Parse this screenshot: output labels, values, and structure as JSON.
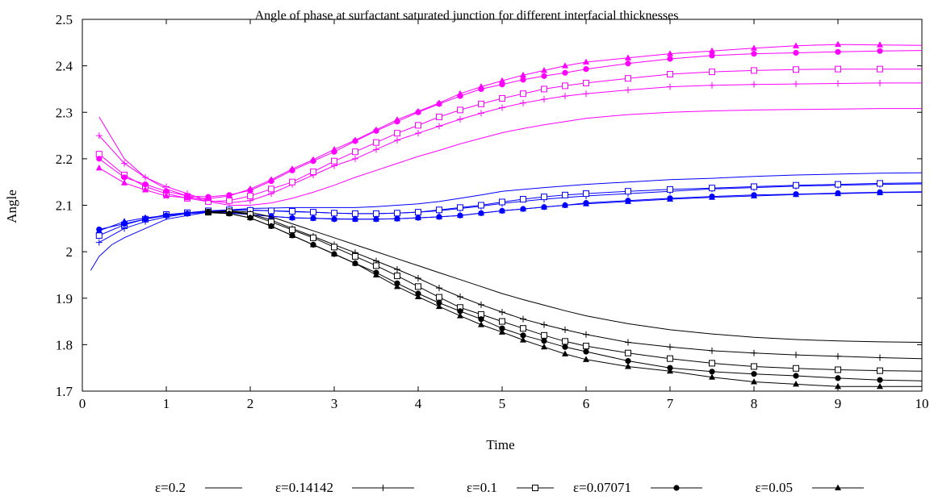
{
  "chart_data": {
    "type": "line",
    "title": "Angle of phase at surfactant saturated junction for different interfacial thicknesses",
    "xlabel": "Time",
    "ylabel": "Angle",
    "xlim": [
      0,
      10
    ],
    "ylim": [
      1.7,
      2.5
    ],
    "xticks": [
      0,
      1,
      2,
      3,
      4,
      5,
      6,
      7,
      8,
      9,
      10
    ],
    "xtick_labels": [
      "0",
      "1",
      "2",
      "3",
      "4",
      "5",
      "6",
      "7",
      "8",
      "9",
      "10"
    ],
    "yticks": [
      1.7,
      1.8,
      1.9,
      2.0,
      2.1,
      2.2,
      2.3,
      2.4,
      2.5
    ],
    "ytick_labels": [
      "1.7",
      "1.8",
      "1.9",
      "2",
      "2.1",
      "2.2",
      "2.3",
      "2.4",
      "2.5"
    ],
    "grid": false,
    "legend_position": "bottom",
    "line_colors": {
      "magenta": "#ff00ff",
      "blue": "#0000ff",
      "black": "#000000"
    },
    "legend": [
      {
        "label": "ε=0.2",
        "marker": "none"
      },
      {
        "label": "ε=0.14142",
        "marker": "plus"
      },
      {
        "label": "ε=0.1",
        "marker": "open-square"
      },
      {
        "label": "ε=0.07071",
        "marker": "filled-circle"
      },
      {
        "label": "ε=0.05",
        "marker": "filled-triangle"
      }
    ],
    "series": [
      {
        "name": "ε=0.2",
        "group": "magenta",
        "marker": "none",
        "x": [
          0.2,
          0.5,
          0.75,
          1.0,
          1.25,
          1.5,
          1.75,
          2.0,
          2.25,
          2.5,
          2.75,
          3.0,
          3.25,
          3.5,
          3.75,
          4.0,
          4.25,
          4.5,
          4.75,
          5.0,
          5.25,
          5.5,
          5.75,
          6.0,
          6.5,
          7.0,
          7.5,
          8.0,
          8.5,
          9.0,
          9.5,
          10.0
        ],
        "y": [
          2.29,
          2.2,
          2.16,
          2.135,
          2.12,
          2.108,
          2.1,
          2.1,
          2.105,
          2.115,
          2.128,
          2.143,
          2.16,
          2.175,
          2.19,
          2.205,
          2.218,
          2.232,
          2.244,
          2.256,
          2.265,
          2.273,
          2.28,
          2.287,
          2.295,
          2.3,
          2.303,
          2.305,
          2.306,
          2.307,
          2.308,
          2.308
        ]
      },
      {
        "name": "ε=0.14142",
        "group": "magenta",
        "marker": "plus",
        "x": [
          0.2,
          0.5,
          0.75,
          1.0,
          1.25,
          1.5,
          1.75,
          2.0,
          2.25,
          2.5,
          2.75,
          3.0,
          3.25,
          3.5,
          3.75,
          4.0,
          4.25,
          4.5,
          4.75,
          5.0,
          5.25,
          5.5,
          5.75,
          6.0,
          6.5,
          7.0,
          7.5,
          8.0,
          8.5,
          9.0,
          9.5,
          10.0
        ],
        "y": [
          2.25,
          2.19,
          2.16,
          2.14,
          2.125,
          2.11,
          2.105,
          2.11,
          2.125,
          2.145,
          2.165,
          2.185,
          2.2,
          2.22,
          2.24,
          2.255,
          2.27,
          2.285,
          2.298,
          2.31,
          2.32,
          2.328,
          2.335,
          2.34,
          2.348,
          2.355,
          2.358,
          2.36,
          2.361,
          2.362,
          2.363,
          2.363
        ]
      },
      {
        "name": "ε=0.1",
        "group": "magenta",
        "marker": "open-square",
        "x": [
          0.2,
          0.5,
          0.75,
          1.0,
          1.25,
          1.5,
          1.75,
          2.0,
          2.25,
          2.5,
          2.75,
          3.0,
          3.25,
          3.5,
          3.75,
          4.0,
          4.25,
          4.5,
          4.75,
          5.0,
          5.25,
          5.5,
          5.75,
          6.0,
          6.5,
          7.0,
          7.5,
          8.0,
          8.5,
          9.0,
          9.5,
          10.0
        ],
        "y": [
          2.21,
          2.165,
          2.14,
          2.125,
          2.115,
          2.108,
          2.11,
          2.12,
          2.135,
          2.15,
          2.172,
          2.195,
          2.215,
          2.235,
          2.255,
          2.272,
          2.29,
          2.305,
          2.318,
          2.33,
          2.34,
          2.35,
          2.357,
          2.363,
          2.373,
          2.382,
          2.387,
          2.39,
          2.392,
          2.393,
          2.393,
          2.393
        ]
      },
      {
        "name": "ε=0.07071",
        "group": "magenta",
        "marker": "filled-circle",
        "x": [
          0.2,
          0.5,
          0.75,
          1.0,
          1.25,
          1.5,
          1.75,
          2.0,
          2.25,
          2.5,
          2.75,
          3.0,
          3.25,
          3.5,
          3.75,
          4.0,
          4.25,
          4.5,
          4.75,
          5.0,
          5.25,
          5.5,
          5.75,
          6.0,
          6.5,
          7.0,
          7.5,
          8.0,
          8.5,
          9.0,
          9.5,
          10.0
        ],
        "y": [
          2.2,
          2.16,
          2.145,
          2.13,
          2.12,
          2.118,
          2.122,
          2.132,
          2.152,
          2.175,
          2.195,
          2.215,
          2.238,
          2.26,
          2.28,
          2.3,
          2.318,
          2.335,
          2.35,
          2.36,
          2.37,
          2.378,
          2.385,
          2.393,
          2.405,
          2.415,
          2.422,
          2.426,
          2.428,
          2.43,
          2.432,
          2.433
        ]
      },
      {
        "name": "ε=0.05",
        "group": "magenta",
        "marker": "filled-triangle",
        "x": [
          0.2,
          0.5,
          0.75,
          1.0,
          1.25,
          1.5,
          1.75,
          2.0,
          2.25,
          2.5,
          2.75,
          3.0,
          3.25,
          3.5,
          3.75,
          4.0,
          4.25,
          4.5,
          4.75,
          5.0,
          5.25,
          5.5,
          5.75,
          6.0,
          6.5,
          7.0,
          7.5,
          8.0,
          8.5,
          9.0,
          9.5,
          10.0
        ],
        "y": [
          2.18,
          2.148,
          2.133,
          2.12,
          2.116,
          2.114,
          2.12,
          2.135,
          2.155,
          2.178,
          2.198,
          2.22,
          2.24,
          2.262,
          2.284,
          2.302,
          2.32,
          2.34,
          2.355,
          2.368,
          2.38,
          2.39,
          2.4,
          2.408,
          2.417,
          2.426,
          2.432,
          2.438,
          2.443,
          2.446,
          2.445,
          2.444
        ]
      },
      {
        "name": "ε=0.2",
        "group": "blue",
        "marker": "none",
        "x": [
          0.1,
          0.2,
          0.35,
          0.5,
          0.75,
          1.0,
          1.25,
          1.5,
          1.75,
          2.0,
          2.25,
          2.5,
          2.75,
          3.0,
          3.25,
          3.5,
          3.75,
          4.0,
          4.25,
          4.5,
          4.75,
          5.0,
          5.5,
          6.0,
          6.5,
          7.0,
          7.5,
          8.0,
          8.5,
          9.0,
          9.5,
          10.0
        ],
        "y": [
          1.96,
          1.99,
          2.015,
          2.03,
          2.05,
          2.07,
          2.078,
          2.085,
          2.09,
          2.093,
          2.094,
          2.095,
          2.095,
          2.095,
          2.095,
          2.097,
          2.1,
          2.103,
          2.108,
          2.115,
          2.122,
          2.13,
          2.138,
          2.145,
          2.15,
          2.155,
          2.158,
          2.162,
          2.165,
          2.167,
          2.169,
          2.17
        ]
      },
      {
        "name": "ε=0.14142",
        "group": "blue",
        "marker": "plus",
        "x": [
          0.2,
          0.5,
          0.75,
          1.0,
          1.25,
          1.5,
          1.75,
          2.0,
          2.25,
          2.5,
          2.75,
          3.0,
          3.25,
          3.5,
          3.75,
          4.0,
          4.25,
          4.5,
          4.75,
          5.0,
          5.5,
          6.0,
          6.5,
          7.0,
          7.5,
          8.0,
          8.5,
          9.0,
          9.5,
          10.0
        ],
        "y": [
          2.02,
          2.05,
          2.065,
          2.075,
          2.082,
          2.087,
          2.09,
          2.09,
          2.088,
          2.086,
          2.085,
          2.083,
          2.082,
          2.082,
          2.083,
          2.085,
          2.088,
          2.093,
          2.098,
          2.104,
          2.113,
          2.12,
          2.125,
          2.13,
          2.135,
          2.138,
          2.141,
          2.143,
          2.145,
          2.146
        ]
      },
      {
        "name": "ε=0.1",
        "group": "blue",
        "marker": "open-square",
        "x": [
          0.2,
          0.5,
          0.75,
          1.0,
          1.25,
          1.5,
          1.75,
          2.0,
          2.25,
          2.5,
          2.75,
          3.0,
          3.25,
          3.5,
          3.75,
          4.0,
          4.25,
          4.5,
          4.75,
          5.0,
          5.25,
          5.5,
          5.75,
          6.0,
          6.5,
          7.0,
          7.5,
          8.0,
          8.5,
          9.0,
          9.5,
          10.0
        ],
        "y": [
          2.035,
          2.058,
          2.07,
          2.08,
          2.084,
          2.088,
          2.09,
          2.089,
          2.088,
          2.087,
          2.085,
          2.083,
          2.082,
          2.082,
          2.083,
          2.085,
          2.09,
          2.095,
          2.1,
          2.107,
          2.113,
          2.118,
          2.122,
          2.125,
          2.13,
          2.134,
          2.137,
          2.14,
          2.143,
          2.145,
          2.147,
          2.148
        ]
      },
      {
        "name": "ε=0.07071",
        "group": "blue",
        "marker": "filled-circle",
        "x": [
          0.2,
          0.5,
          0.75,
          1.0,
          1.25,
          1.5,
          1.75,
          2.0,
          2.25,
          2.5,
          2.75,
          3.0,
          3.25,
          3.5,
          3.75,
          4.0,
          4.25,
          4.5,
          4.75,
          5.0,
          5.25,
          5.5,
          5.75,
          6.0,
          6.5,
          7.0,
          7.5,
          8.0,
          8.5,
          9.0,
          9.5,
          10.0
        ],
        "y": [
          2.048,
          2.06,
          2.07,
          2.078,
          2.082,
          2.085,
          2.083,
          2.08,
          2.076,
          2.073,
          2.072,
          2.07,
          2.07,
          2.07,
          2.071,
          2.073,
          2.075,
          2.078,
          2.083,
          2.088,
          2.092,
          2.096,
          2.1,
          2.105,
          2.11,
          2.115,
          2.119,
          2.122,
          2.124,
          2.126,
          2.128,
          2.129
        ]
      },
      {
        "name": "ε=0.05",
        "group": "blue",
        "marker": "filled-triangle",
        "x": [
          0.2,
          0.5,
          0.75,
          1.0,
          1.25,
          1.5,
          1.75,
          2.0,
          2.25,
          2.5,
          2.75,
          3.0,
          3.25,
          3.5,
          3.75,
          4.0,
          4.25,
          4.5,
          4.75,
          5.0,
          5.25,
          5.5,
          5.75,
          6.0,
          6.5,
          7.0,
          7.5,
          8.0,
          8.5,
          9.0,
          9.5,
          10.0
        ],
        "y": [
          2.045,
          2.065,
          2.073,
          2.078,
          2.082,
          2.085,
          2.084,
          2.08,
          2.076,
          2.073,
          2.072,
          2.071,
          2.07,
          2.07,
          2.071,
          2.073,
          2.075,
          2.078,
          2.083,
          2.088,
          2.092,
          2.096,
          2.1,
          2.103,
          2.108,
          2.113,
          2.117,
          2.12,
          2.123,
          2.125,
          2.127,
          2.128
        ]
      },
      {
        "name": "ε=0.2",
        "group": "black",
        "marker": "none",
        "x": [
          1.5,
          1.75,
          2.0,
          2.25,
          2.5,
          2.75,
          3.0,
          3.25,
          3.5,
          3.75,
          4.0,
          4.25,
          4.5,
          4.75,
          5.0,
          5.25,
          5.5,
          5.75,
          6.0,
          6.5,
          7.0,
          7.5,
          8.0,
          8.5,
          9.0,
          9.5,
          10.0
        ],
        "y": [
          2.085,
          2.088,
          2.085,
          2.075,
          2.06,
          2.045,
          2.03,
          2.015,
          2.0,
          1.985,
          1.97,
          1.955,
          1.94,
          1.925,
          1.91,
          1.897,
          1.885,
          1.873,
          1.862,
          1.845,
          1.832,
          1.823,
          1.816,
          1.811,
          1.808,
          1.806,
          1.805
        ]
      },
      {
        "name": "ε=0.14142",
        "group": "black",
        "marker": "plus",
        "x": [
          1.5,
          1.75,
          2.0,
          2.25,
          2.5,
          2.75,
          3.0,
          3.25,
          3.5,
          3.75,
          4.0,
          4.25,
          4.5,
          4.75,
          5.0,
          5.25,
          5.5,
          5.75,
          6.0,
          6.5,
          7.0,
          7.5,
          8.0,
          8.5,
          9.0,
          9.5,
          10.0
        ],
        "y": [
          2.085,
          2.087,
          2.082,
          2.068,
          2.05,
          2.033,
          2.015,
          1.998,
          1.98,
          1.962,
          1.943,
          1.922,
          1.903,
          1.886,
          1.87,
          1.855,
          1.843,
          1.832,
          1.822,
          1.805,
          1.795,
          1.787,
          1.782,
          1.778,
          1.775,
          1.772,
          1.77
        ]
      },
      {
        "name": "ε=0.1",
        "group": "black",
        "marker": "open-square",
        "x": [
          1.5,
          1.75,
          2.0,
          2.25,
          2.5,
          2.75,
          3.0,
          3.25,
          3.5,
          3.75,
          4.0,
          4.25,
          4.5,
          4.75,
          5.0,
          5.25,
          5.5,
          5.75,
          6.0,
          6.5,
          7.0,
          7.5,
          8.0,
          8.5,
          9.0,
          9.5,
          10.0
        ],
        "y": [
          2.085,
          2.086,
          2.08,
          2.064,
          2.047,
          2.03,
          2.01,
          1.99,
          1.97,
          1.948,
          1.925,
          1.902,
          1.88,
          1.865,
          1.85,
          1.835,
          1.82,
          1.807,
          1.797,
          1.782,
          1.77,
          1.76,
          1.753,
          1.749,
          1.746,
          1.744,
          1.743
        ]
      },
      {
        "name": "ε=0.07071",
        "group": "black",
        "marker": "filled-circle",
        "x": [
          1.5,
          1.75,
          2.0,
          2.25,
          2.5,
          2.75,
          3.0,
          3.25,
          3.5,
          3.75,
          4.0,
          4.25,
          4.5,
          4.75,
          5.0,
          5.25,
          5.5,
          5.75,
          6.0,
          6.5,
          7.0,
          7.5,
          8.0,
          8.5,
          9.0,
          9.5,
          10.0
        ],
        "y": [
          2.085,
          2.082,
          2.073,
          2.055,
          2.035,
          2.015,
          1.995,
          1.975,
          1.955,
          1.932,
          1.91,
          1.89,
          1.872,
          1.855,
          1.835,
          1.82,
          1.808,
          1.795,
          1.785,
          1.765,
          1.75,
          1.742,
          1.737,
          1.733,
          1.728,
          1.724,
          1.722
        ]
      },
      {
        "name": "ε=0.05",
        "group": "black",
        "marker": "filled-triangle",
        "x": [
          1.5,
          1.75,
          2.0,
          2.25,
          2.5,
          2.75,
          3.0,
          3.25,
          3.5,
          3.75,
          4.0,
          4.25,
          4.5,
          4.75,
          5.0,
          5.25,
          5.5,
          5.75,
          6.0,
          6.5,
          7.0,
          7.5,
          8.0,
          8.5,
          9.0,
          9.5,
          10.0
        ],
        "y": [
          2.084,
          2.082,
          2.073,
          2.055,
          2.035,
          2.015,
          1.995,
          1.975,
          1.95,
          1.925,
          1.903,
          1.882,
          1.862,
          1.843,
          1.827,
          1.81,
          1.795,
          1.78,
          1.768,
          1.753,
          1.743,
          1.73,
          1.72,
          1.715,
          1.71,
          1.71,
          1.71
        ]
      }
    ]
  }
}
